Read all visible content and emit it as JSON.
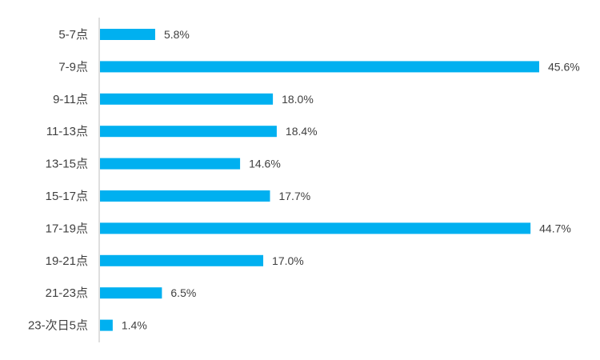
{
  "chart_data": {
    "type": "bar",
    "orientation": "horizontal",
    "categories": [
      "5-7点",
      "7-9点",
      "9-11点",
      "11-13点",
      "13-15点",
      "15-17点",
      "17-19点",
      "19-21点",
      "21-23点",
      "23-次日5点"
    ],
    "values": [
      5.8,
      45.6,
      18.0,
      18.4,
      14.6,
      17.7,
      44.7,
      17.0,
      6.5,
      1.4
    ],
    "value_labels": [
      "5.8%",
      "45.6%",
      "18.0%",
      "18.4%",
      "14.6%",
      "17.7%",
      "44.7%",
      "17.0%",
      "6.5%",
      "1.4%"
    ],
    "title": "",
    "xlabel": "",
    "ylabel": "",
    "xlim": [
      0,
      46
    ],
    "grid": false,
    "legend": "none",
    "bar_color": "#00B0F0",
    "axis_color": "#BFBFBF",
    "text_color": "#404040"
  }
}
